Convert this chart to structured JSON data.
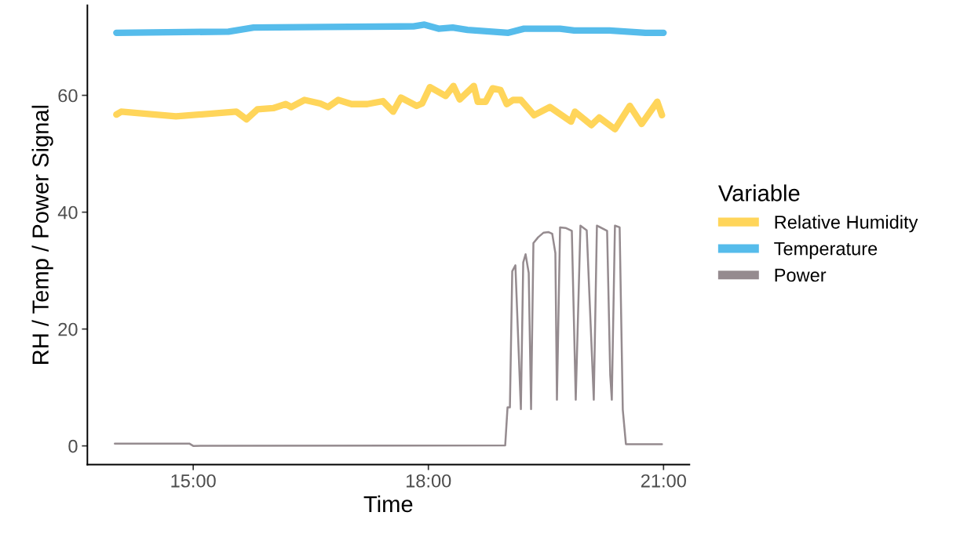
{
  "chart_data": {
    "type": "line",
    "xlabel": "Time",
    "ylabel": "RH / Temp / Power Signal",
    "legend_title": "Variable",
    "legend": "right",
    "grid": false,
    "xlim": [
      13.65,
      21.33
    ],
    "xticks": [
      {
        "value": 15,
        "label": "15:00"
      },
      {
        "value": 18,
        "label": "18:00"
      },
      {
        "value": 21,
        "label": "21:00"
      }
    ],
    "ylim": [
      -3.2,
      75.4
    ],
    "yticks": [
      0,
      20,
      40,
      60
    ],
    "series": [
      {
        "name": "Relative Humidity",
        "color": "#ffd55a",
        "x": [
          14.02,
          14.08,
          14.78,
          15.55,
          15.68,
          15.82,
          16.02,
          16.18,
          16.25,
          16.42,
          16.62,
          16.72,
          16.85,
          17.02,
          17.22,
          17.42,
          17.55,
          17.65,
          17.85,
          17.92,
          18.02,
          18.22,
          18.32,
          18.4,
          18.58,
          18.63,
          18.73,
          18.82,
          18.92,
          19.0,
          19.08,
          19.18,
          19.35,
          19.55,
          19.82,
          19.87,
          20.08,
          20.18,
          20.38,
          20.57,
          20.72,
          20.92,
          20.98
        ],
        "values": [
          56.7,
          57.2,
          56.4,
          57.2,
          55.9,
          57.6,
          57.8,
          58.5,
          58.0,
          59.2,
          58.6,
          58.0,
          59.2,
          58.5,
          58.5,
          59.0,
          57.2,
          59.6,
          58.2,
          58.6,
          61.4,
          59.9,
          61.6,
          59.3,
          61.6,
          58.9,
          58.9,
          61.2,
          60.9,
          58.5,
          59.2,
          59.2,
          56.6,
          58.0,
          55.5,
          57.2,
          54.9,
          56.2,
          54.2,
          58.2,
          55.1,
          58.9,
          56.6
        ]
      },
      {
        "name": "Temperature",
        "color": "#56bceb",
        "x": [
          14.02,
          15.45,
          15.77,
          16.68,
          17.81,
          17.95,
          18.13,
          18.31,
          18.5,
          19.02,
          19.22,
          19.68,
          19.86,
          20.31,
          20.77,
          21.0
        ],
        "values": [
          70.7,
          70.9,
          71.6,
          71.7,
          71.8,
          72.1,
          71.4,
          71.6,
          71.2,
          70.7,
          71.4,
          71.4,
          71.1,
          71.1,
          70.7,
          70.7
        ]
      },
      {
        "name": "Power",
        "color": "#958b8f",
        "x": [
          14.0,
          14.95,
          15.0,
          18.98,
          19.01,
          19.04,
          19.07,
          19.11,
          19.18,
          19.21,
          19.24,
          19.28,
          19.31,
          19.34,
          19.4,
          19.47,
          19.53,
          19.58,
          19.62,
          19.64,
          19.68,
          19.75,
          19.83,
          19.88,
          19.94,
          20.02,
          20.11,
          20.15,
          20.28,
          20.32,
          20.34,
          20.38,
          20.44,
          20.48,
          20.52,
          20.98
        ],
        "values": [
          0.4,
          0.4,
          0,
          0.1,
          6.6,
          6.6,
          29.9,
          30.9,
          6.3,
          31.4,
          32.8,
          29.6,
          6.3,
          34.7,
          35.7,
          36.5,
          36.6,
          36.3,
          33.0,
          7.9,
          37.4,
          37.3,
          36.8,
          7.9,
          37.7,
          36.9,
          7.9,
          37.7,
          36.8,
          12.1,
          7.9,
          37.7,
          37.4,
          6.2,
          0.3,
          0.3
        ]
      }
    ]
  }
}
